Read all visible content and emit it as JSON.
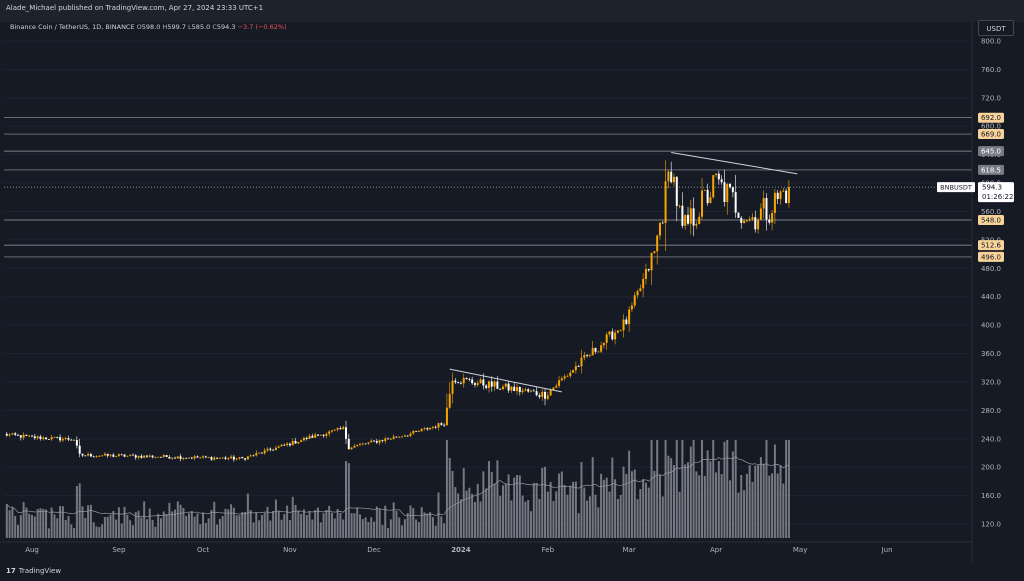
{
  "header": {
    "publisher_text": "Alade_Michael published on TradingView.com, Apr 27, 2024 23:33 UTC+1"
  },
  "symbol_line": {
    "name": "Binance Coin / TetherUS, 1D, BINANCE",
    "o_label": "O",
    "o_value": "598.0",
    "h_label": "H",
    "h_value": "599.7",
    "l_label": "L",
    "l_value": "585.0",
    "c_label": "C",
    "c_value": "594.3",
    "change": "−3.7 (−0.62%)"
  },
  "currency_button": "USDT",
  "footer": {
    "logo_mark": "17",
    "logo_text": "TradingView"
  },
  "colors": {
    "background": "#161a25",
    "up_candle": "#f7a600",
    "down_candle": "#ffffff",
    "volume": "#9598a1",
    "line": "#b2b5be",
    "tag_orange": "#f7d39a",
    "tag_gray": "#787b86"
  },
  "chart_data": {
    "type": "candlestick",
    "symbol": "BNBUSDT",
    "timeframe": "1D",
    "y_axis": {
      "ticks": [
        "800.0",
        "760.0",
        "720.0",
        "680.0",
        "640.0",
        "600.0",
        "560.0",
        "520.0",
        "480.0",
        "440.0",
        "400.0",
        "360.0",
        "320.0",
        "280.0",
        "240.0",
        "200.0",
        "160.0",
        "120.0"
      ],
      "range": [
        110,
        810
      ],
      "last_price": "594.3",
      "last_label": "BNBUSDT",
      "countdown": "01:26:22"
    },
    "x_axis": {
      "ticks": [
        "Aug",
        "Sep",
        "Oct",
        "Nov",
        "Dec",
        "2024",
        "Feb",
        "Mar",
        "Apr",
        "May",
        "Jun"
      ]
    },
    "horizontal_levels": [
      {
        "value": 692.0,
        "label": "692.0",
        "style": "orange"
      },
      {
        "value": 669.0,
        "label": "669.0",
        "style": "orange"
      },
      {
        "value": 645.0,
        "label": "645.0",
        "style": "gray"
      },
      {
        "value": 618.5,
        "label": "618.5",
        "style": "gray"
      },
      {
        "value": 548.0,
        "label": "548.0",
        "style": "orange"
      },
      {
        "value": 512.6,
        "label": "512.6",
        "style": "orange"
      },
      {
        "value": 496.0,
        "label": "496.0",
        "style": "orange"
      }
    ],
    "trendlines": [
      {
        "from": {
          "date": "2023-12-28",
          "price": 338
        },
        "to": {
          "date": "2024-02-06",
          "price": 306
        }
      },
      {
        "from": {
          "date": "2024-03-16",
          "price": 643
        },
        "to": {
          "date": "2024-04-30",
          "price": 613
        }
      }
    ],
    "price_series": [
      {
        "start": "2023-07-22",
        "end": "2023-08-01",
        "from": 246,
        "to": 242
      },
      {
        "start": "2023-08-01",
        "end": "2023-08-16",
        "from": 242,
        "to": 239
      },
      {
        "start": "2023-08-16",
        "end": "2023-08-18",
        "from": 239,
        "to": 217
      },
      {
        "start": "2023-08-18",
        "end": "2023-09-15",
        "from": 217,
        "to": 215
      },
      {
        "start": "2023-09-15",
        "end": "2023-10-15",
        "from": 215,
        "to": 212
      },
      {
        "start": "2023-10-15",
        "end": "2023-11-08",
        "from": 212,
        "to": 242
      },
      {
        "start": "2023-11-08",
        "end": "2023-11-20",
        "from": 242,
        "to": 254
      },
      {
        "start": "2023-11-20",
        "end": "2023-11-22",
        "from": 254,
        "to": 228
      },
      {
        "start": "2023-11-22",
        "end": "2023-12-15",
        "from": 228,
        "to": 248
      },
      {
        "start": "2023-12-15",
        "end": "2023-12-26",
        "from": 248,
        "to": 262
      },
      {
        "start": "2023-12-26",
        "end": "2023-12-29",
        "from": 262,
        "to": 325
      },
      {
        "start": "2023-12-29",
        "end": "2024-01-31",
        "from": 325,
        "to": 302
      },
      {
        "start": "2024-01-31",
        "end": "2024-02-29",
        "from": 302,
        "to": 405
      },
      {
        "start": "2024-02-29",
        "end": "2024-03-10",
        "from": 405,
        "to": 500
      },
      {
        "start": "2024-03-10",
        "end": "2024-03-16",
        "from": 500,
        "to": 625
      },
      {
        "start": "2024-03-16",
        "end": "2024-03-20",
        "from": 625,
        "to": 530
      },
      {
        "start": "2024-03-20",
        "end": "2024-04-01",
        "from": 530,
        "to": 600
      },
      {
        "start": "2024-04-01",
        "end": "2024-04-13",
        "from": 600,
        "to": 550
      },
      {
        "start": "2024-04-13",
        "end": "2024-04-20",
        "from": 550,
        "to": 565
      },
      {
        "start": "2024-04-20",
        "end": "2024-04-27",
        "from": 565,
        "to": 594.3
      }
    ],
    "volume_note": "daily volume histogram along bottom with moving-average line"
  }
}
